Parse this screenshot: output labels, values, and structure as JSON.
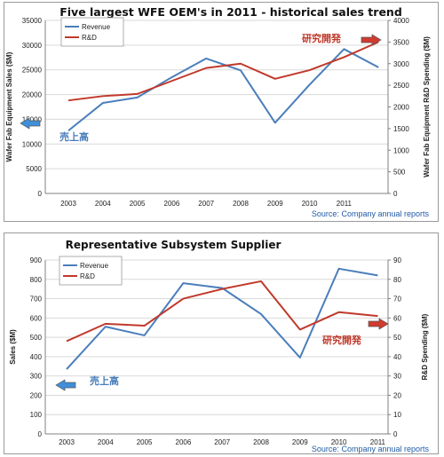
{
  "colors": {
    "revenue": "#4a7ebb",
    "rd": "#c0392b",
    "grid": "#d9d9d9",
    "axis": "#808080",
    "source": "#1f5aa6",
    "arrow_blue": "#3f8fd9",
    "arrow_red": "#d13a2f"
  },
  "chart_data": [
    {
      "type": "line",
      "title": "Five largest WFE OEM's in 2011 - historical sales trend",
      "categories": [
        "2003",
        "2004",
        "2005",
        "2006",
        "2007",
        "2008",
        "2009",
        "2010",
        "2011",
        ""
      ],
      "ylabel": "Wafer Fab Equipment Sales ($M)",
      "ylabel_right": "Wafer Fab Equipment R&D Spending ($M)",
      "ylim": [
        0,
        35000
      ],
      "ylim_right": [
        0,
        4000
      ],
      "yticks": [
        0,
        5000,
        10000,
        15000,
        20000,
        25000,
        30000,
        35000
      ],
      "yticks_right": [
        0,
        500,
        1000,
        1500,
        2000,
        2500,
        3000,
        3500,
        4000
      ],
      "series": [
        {
          "name": "Revenue",
          "axis": "left",
          "values": [
            12700,
            18300,
            19400,
            23500,
            27300,
            24900,
            14300,
            22000,
            29200,
            25500
          ]
        },
        {
          "name": "R&D",
          "axis": "right",
          "values": [
            2150,
            2250,
            2300,
            2600,
            2900,
            3000,
            2650,
            2850,
            3150,
            3500
          ]
        }
      ],
      "grid": true,
      "legend_position": "top-left",
      "annotations": {
        "sales_label": "売上高",
        "rd_label": "研究開発"
      },
      "source": "Source: Company annual reports"
    },
    {
      "type": "line",
      "title": "Representative Subsystem Supplier",
      "categories": [
        "2003",
        "2004",
        "2005",
        "2006",
        "2007",
        "2008",
        "2009",
        "2010",
        "2011"
      ],
      "ylabel": "Sales ($M)",
      "ylabel_right": "R&D Spending ($M)",
      "ylim": [
        0,
        900
      ],
      "ylim_right": [
        0,
        90
      ],
      "yticks": [
        0,
        100,
        200,
        300,
        400,
        500,
        600,
        700,
        800,
        900
      ],
      "yticks_right": [
        0,
        10,
        20,
        30,
        40,
        50,
        60,
        70,
        80,
        90
      ],
      "series": [
        {
          "name": "Revenue",
          "axis": "left",
          "values": [
            335,
            555,
            510,
            780,
            755,
            620,
            395,
            855,
            820
          ]
        },
        {
          "name": "R&D",
          "axis": "right",
          "values": [
            48,
            57,
            56,
            70,
            75,
            79,
            54,
            63,
            61
          ]
        }
      ],
      "grid": true,
      "legend_position": "top-left",
      "annotations": {
        "sales_label": "売上高",
        "rd_label": "研究開発"
      },
      "source": "Source: Company annual reports"
    }
  ]
}
